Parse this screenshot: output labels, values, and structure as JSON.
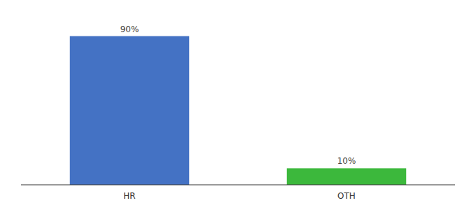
{
  "chart_data": {
    "type": "bar",
    "categories": [
      "HR",
      "OTH"
    ],
    "values": [
      90,
      10
    ],
    "value_labels": [
      "90%",
      "10%"
    ],
    "colors": [
      "#4472c4",
      "#3cb83c"
    ],
    "ylim": [
      0,
      100
    ],
    "data_labels": true,
    "tick_labels": "x",
    "grid": false
  }
}
